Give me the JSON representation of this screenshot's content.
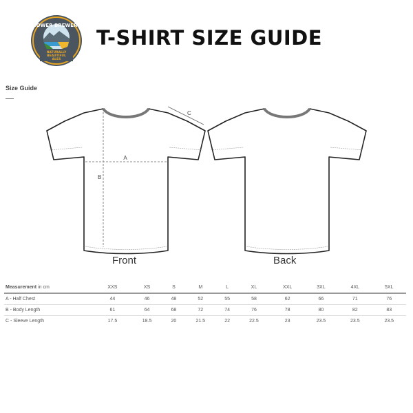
{
  "header": {
    "title": "T-SHIRT SIZE GUIDE",
    "logo_text": [
      "GOWER BREWERY",
      "NATURALLY",
      "BEAUTIFUL",
      "ALES"
    ]
  },
  "section": {
    "title": "Size Guide"
  },
  "diagram": {
    "front_label": "Front",
    "back_label": "Back",
    "markers": {
      "a": "A",
      "b": "B",
      "c": "C"
    }
  },
  "table": {
    "header_bold": "Measurement",
    "header_unit": " in cm",
    "sizes": [
      "XXS",
      "XS",
      "S",
      "M",
      "L",
      "XL",
      "XXL",
      "3XL",
      "4XL",
      "5XL"
    ],
    "rows": [
      {
        "label": "A - Half Chest",
        "values": [
          "44",
          "46",
          "48",
          "52",
          "55",
          "58",
          "62",
          "66",
          "71",
          "76"
        ]
      },
      {
        "label": "B - Body Length",
        "values": [
          "61",
          "64",
          "68",
          "72",
          "74",
          "76",
          "78",
          "80",
          "82",
          "83"
        ]
      },
      {
        "label": "C - Sleeve Length",
        "values": [
          "17.5",
          "18.5",
          "20",
          "21.5",
          "22",
          "22.5",
          "23",
          "23.5",
          "23.5",
          "23.5"
        ]
      }
    ]
  }
}
